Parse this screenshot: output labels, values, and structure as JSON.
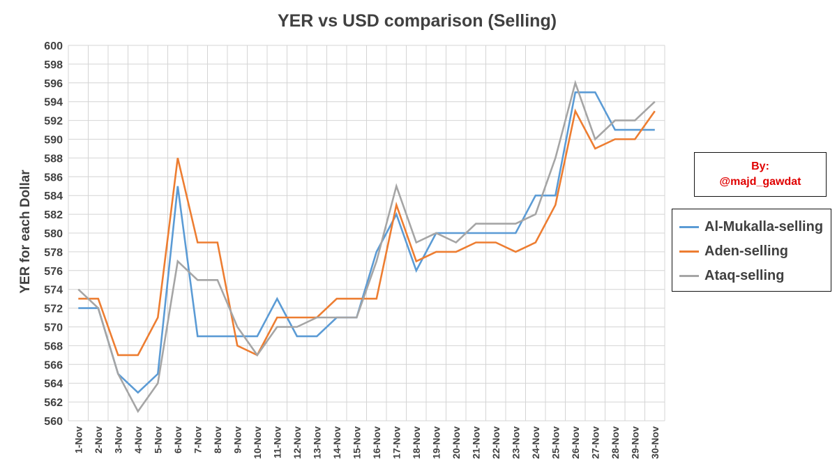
{
  "chart_data": {
    "type": "line",
    "title": "YER vs USD comparison (Selling)",
    "xlabel": "",
    "ylabel": "YER for each Dollar",
    "ylim": [
      560,
      600
    ],
    "ytick_step": 2,
    "grid": true,
    "legend_placement": "right",
    "categories": [
      "1-Nov",
      "2-Nov",
      "3-Nov",
      "4-Nov",
      "5-Nov",
      "6-Nov",
      "7-Nov",
      "8-Nov",
      "9-Nov",
      "10-Nov",
      "11-Nov",
      "12-Nov",
      "13-Nov",
      "14-Nov",
      "15-Nov",
      "16-Nov",
      "17-Nov",
      "18-Nov",
      "19-Nov",
      "20-Nov",
      "21-Nov",
      "22-Nov",
      "23-Nov",
      "24-Nov",
      "25-Nov",
      "26-Nov",
      "27-Nov",
      "28-Nov",
      "29-Nov",
      "30-Nov"
    ],
    "series": [
      {
        "name": "Al-Mukalla-selling",
        "color": "#5B9BD5",
        "values": [
          572,
          572,
          565,
          563,
          565,
          585,
          569,
          569,
          569,
          569,
          573,
          569,
          569,
          571,
          571,
          578,
          582,
          576,
          580,
          580,
          580,
          580,
          580,
          584,
          584,
          595,
          595,
          591,
          591,
          591
        ]
      },
      {
        "name": "Aden-selling",
        "color": "#ED7D31",
        "values": [
          573,
          573,
          567,
          567,
          571,
          588,
          579,
          579,
          568,
          567,
          571,
          571,
          571,
          573,
          573,
          573,
          583,
          577,
          578,
          578,
          579,
          579,
          578,
          579,
          583,
          593,
          589,
          590,
          590,
          593
        ]
      },
      {
        "name": "Ataq-selling",
        "color": "#A5A5A5",
        "values": [
          574,
          572,
          565,
          561,
          564,
          577,
          575,
          575,
          570,
          567,
          570,
          570,
          571,
          571,
          571,
          577,
          585,
          579,
          580,
          579,
          581,
          581,
          581,
          582,
          588,
          596,
          590,
          592,
          592,
          594
        ]
      }
    ]
  },
  "credit": {
    "line1": "By:",
    "line2": "@majd_gawdat"
  }
}
